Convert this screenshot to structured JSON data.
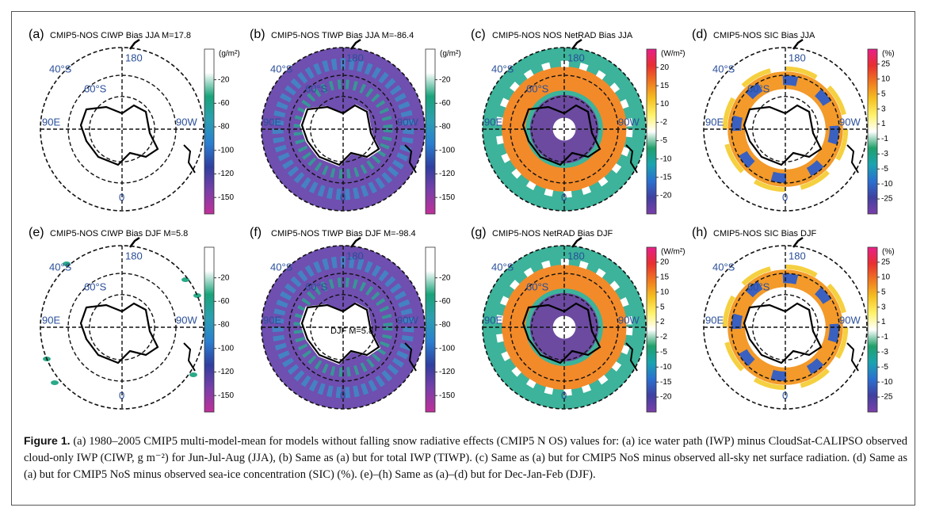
{
  "panels": [
    {
      "letter": "(a)",
      "title": "CMIP5-NOS CIWP Bias JJA M=17.8",
      "unit": "(g/m²)",
      "ticks": [
        "-20",
        "-60",
        "-80",
        "-100",
        "-120",
        "-150"
      ]
    },
    {
      "letter": "(b)",
      "title": "CMIP5-NOS TIWP Bias JJA M=-86.4",
      "unit": "(g/m²)",
      "ticks": [
        "-20",
        "-60",
        "-80",
        "-100",
        "-120",
        "-150"
      ]
    },
    {
      "letter": "(c)",
      "title": "CMIP5-NOS NOS NetRAD Bias JJA",
      "unit": "(W/m²)",
      "ticks": [
        "20",
        "15",
        "10",
        "-2",
        "-5",
        "-10",
        "-15",
        "-20"
      ]
    },
    {
      "letter": "(d)",
      "title": "CMIP5-NOS     SIC Bias JJA",
      "unit": "(%)",
      "ticks": [
        "25",
        "10",
        "5",
        "3",
        "1",
        "-1",
        "-3",
        "-5",
        "-10",
        "-25"
      ]
    },
    {
      "letter": "(e)",
      "title": "CMIP5-NOS CIWP Bias DJF M=5.8",
      "ticks": [
        "-20",
        "-60",
        "-80",
        "-100",
        "-120",
        "-150"
      ]
    },
    {
      "letter": "(f)",
      "title": "CMIP5-NOS TIWP Bias DJF M=-98.4",
      "overlay": "DJF M=5.8",
      "ticks": [
        "-20",
        "-60",
        "-80",
        "-100",
        "-120",
        "-150"
      ]
    },
    {
      "letter": "(g)",
      "title": "CMIP5-NOS NetRAD Bias DJF",
      "unit": "(W/m²)",
      "ticks": [
        "20",
        "15",
        "10",
        "5",
        "2",
        "-2",
        "-5",
        "-10",
        "-15",
        "-20"
      ]
    },
    {
      "letter": "(h)",
      "title": "CMIP5-NOS    SIC   Bias DJF",
      "unit": "(%)",
      "ticks": [
        "25",
        "10",
        "5",
        "3",
        "1",
        "-1",
        "-3",
        "-5",
        "-10",
        "-25"
      ]
    }
  ],
  "map_labels": {
    "lon180": "180",
    "lat40": "40°S",
    "lat60": "60°S",
    "lon90e": "90E",
    "lon90w": "90W",
    "lon0": "0"
  },
  "caption": {
    "label": "Figure 1.",
    "text": "(a) 1980–2005 CMIP5 multi-model-mean for models without falling snow radiative effects (CMIP5 N OS) values for: (a) ice water path (IWP) minus CloudSat-CALIPSO observed cloud-only IWP (CIWP, g m⁻²) for Jun-Jul-Aug (JJA), (b) Same as (a) but for total IWP (TIWP). (c) Same as (a) but for CMIP5 NoS minus observed all-sky net surface radiation. (d) Same as (a) but for CMIP5 NoS minus observed sea-ice concentration (SIC) (%). (e)–(h) Same as (a)–(d) but for Dec-Jan-Feb (DJF)."
  }
}
